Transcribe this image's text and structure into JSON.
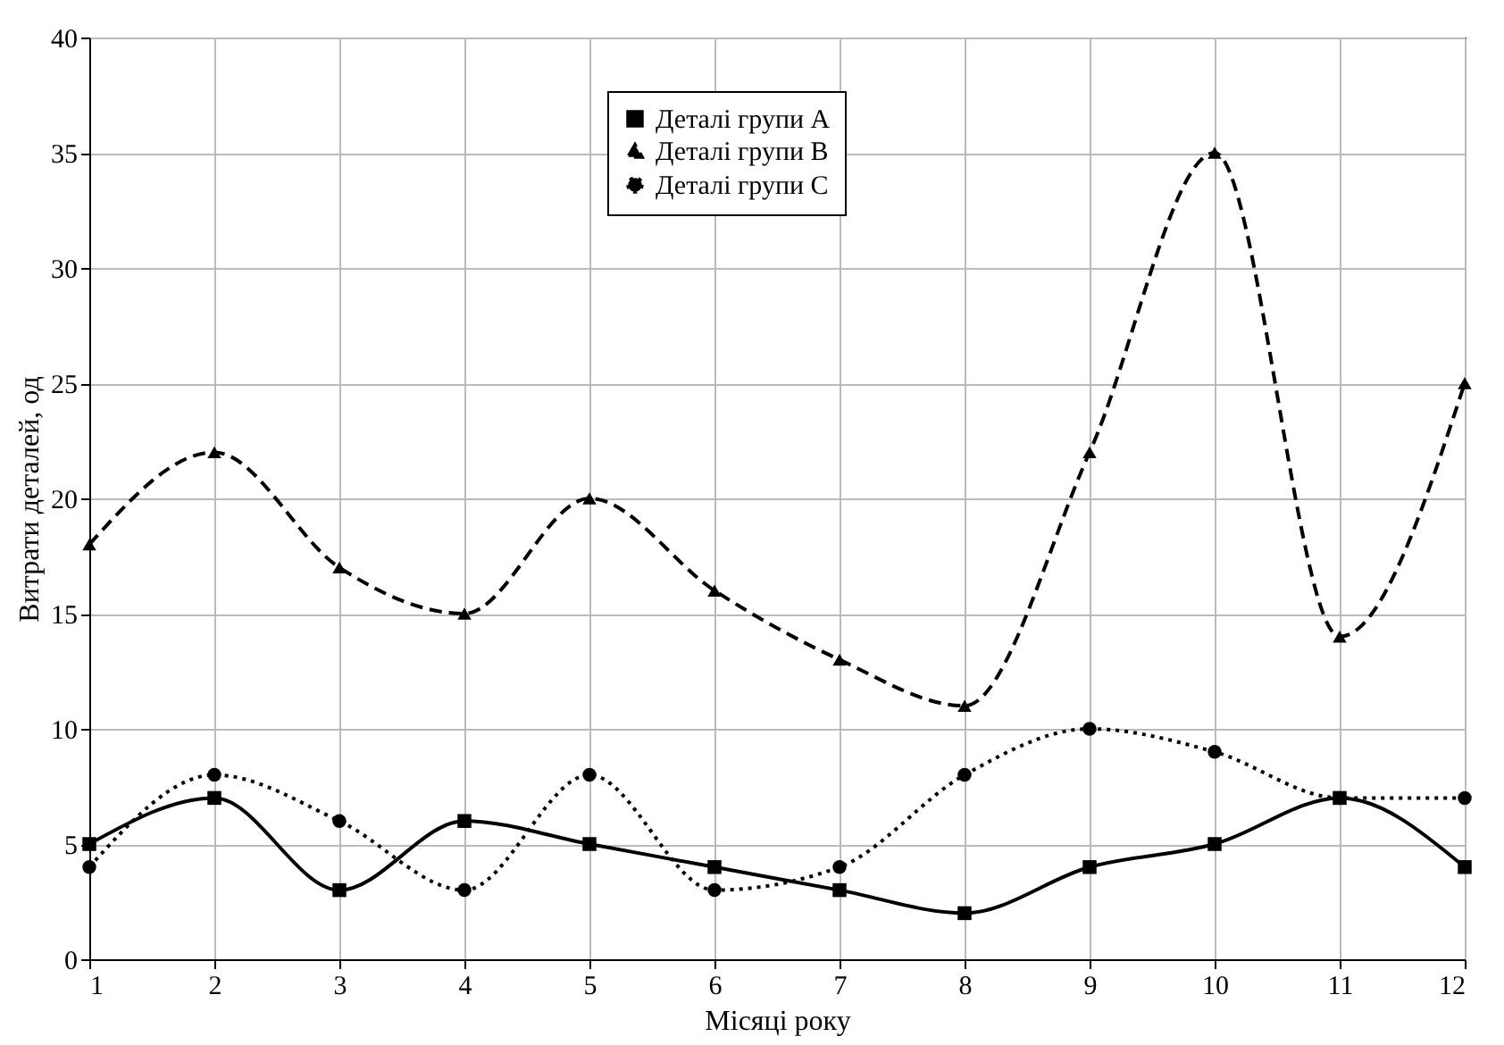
{
  "chart_data": {
    "type": "line",
    "xlabel": "Місяці року",
    "ylabel": "Витрати деталей, од",
    "x": [
      1,
      2,
      3,
      4,
      5,
      6,
      7,
      8,
      9,
      10,
      11,
      12
    ],
    "series": [
      {
        "name": "Деталі групи A",
        "color": "#000000",
        "marker": "square",
        "line_style": "solid",
        "values": [
          5,
          7,
          3,
          6,
          5,
          4,
          3,
          2,
          4,
          5,
          7,
          4
        ]
      },
      {
        "name": "Деталі групи B",
        "color": "#000000",
        "marker": "triangle",
        "line_style": "dashed",
        "values": [
          18,
          22,
          17,
          15,
          20,
          16,
          13,
          11,
          22,
          35,
          14,
          25
        ]
      },
      {
        "name": "Деталі групи C",
        "color": "#000000",
        "marker": "circle",
        "line_style": "dotted",
        "values": [
          4,
          8,
          6,
          3,
          8,
          3,
          4,
          8,
          10,
          9,
          7,
          7
        ]
      }
    ],
    "xlim": [
      1,
      12
    ],
    "xticks": [
      1,
      2,
      3,
      4,
      5,
      6,
      7,
      8,
      9,
      10,
      11,
      12
    ],
    "ylim": [
      0,
      40
    ],
    "yticks": [
      0,
      5,
      10,
      15,
      20,
      25,
      30,
      35,
      40
    ],
    "grid": true,
    "legend": "top"
  }
}
